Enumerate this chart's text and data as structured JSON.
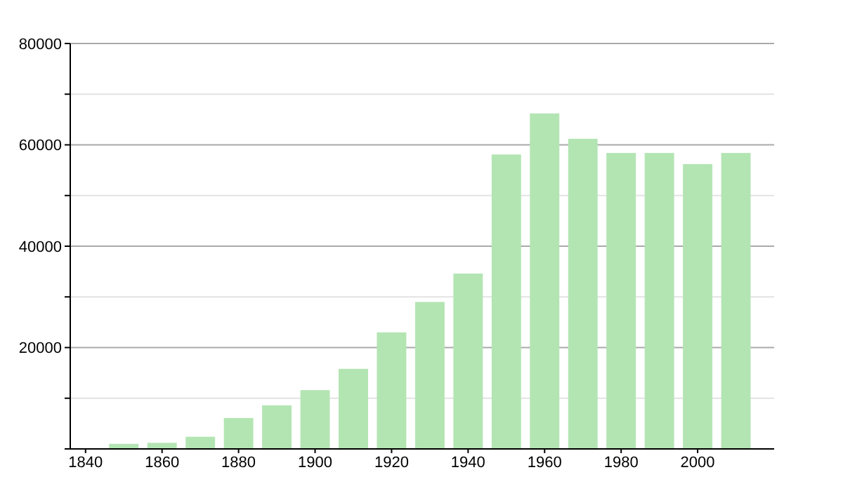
{
  "chart_data": {
    "type": "bar",
    "x": [
      1850,
      1860,
      1870,
      1880,
      1890,
      1900,
      1910,
      1920,
      1930,
      1940,
      1950,
      1960,
      1970,
      1980,
      1990,
      2000,
      2010
    ],
    "values": [
      1000,
      1200,
      2400,
      6100,
      8600,
      11600,
      15800,
      23000,
      29000,
      34600,
      58100,
      66200,
      61200,
      58400,
      58400,
      56200,
      58400
    ],
    "color": "#b3e5b3",
    "xlim": [
      1836,
      2020
    ],
    "xticks": [
      1840,
      1860,
      1880,
      1900,
      1920,
      1940,
      1960,
      1980,
      2000
    ],
    "ylim": [
      0,
      80000
    ],
    "yticks": [
      {
        "value": 0,
        "label": null
      },
      {
        "value": 10000,
        "label": null
      },
      20000,
      {
        "value": 30000,
        "label": null
      },
      40000,
      {
        "value": 50000,
        "label": null
      },
      60000,
      {
        "value": 70000,
        "label": null
      },
      80000
    ],
    "grid": "y"
  }
}
